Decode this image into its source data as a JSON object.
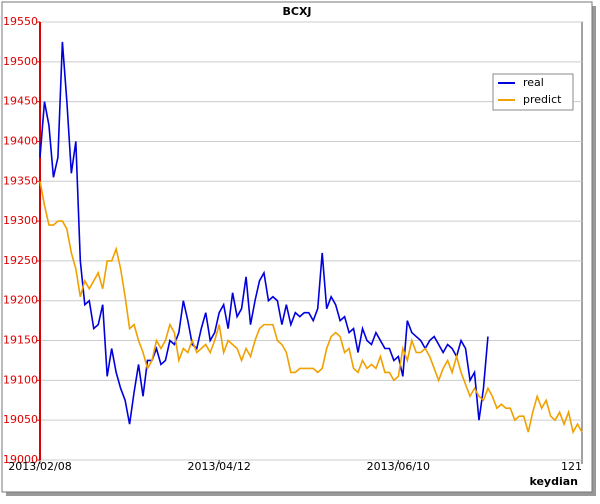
{
  "chart_data": {
    "type": "line",
    "title": "BCXJ",
    "xlabel": "keydian",
    "xlim": [
      0,
      121
    ],
    "xticks": [
      {
        "value": 0,
        "label": "2013/02/08"
      },
      {
        "value": 40,
        "label": "2013/04/12"
      },
      {
        "value": 80,
        "label": "2013/06/10"
      },
      121
    ],
    "ylim": [
      19000,
      19550
    ],
    "yticks": [
      19000,
      19050,
      19100,
      19150,
      19200,
      19250,
      19300,
      19350,
      19400,
      19450,
      19500,
      19550
    ],
    "grid": true,
    "legend": "upper right",
    "series": [
      {
        "name": "real",
        "color": "#0000dd",
        "values": [
          19380,
          19450,
          19420,
          19355,
          19380,
          19525,
          19450,
          19360,
          19400,
          19250,
          19195,
          19200,
          19165,
          19170,
          19195,
          19105,
          19140,
          19110,
          19090,
          19075,
          19045,
          19085,
          19120,
          19080,
          19125,
          19125,
          19140,
          19120,
          19125,
          19150,
          19145,
          19160,
          19200,
          19175,
          19145,
          19140,
          19165,
          19185,
          19150,
          19160,
          19185,
          19195,
          19165,
          19210,
          19180,
          19190,
          19230,
          19170,
          19200,
          19225,
          19235,
          19200,
          19205,
          19200,
          19170,
          19195,
          19170,
          19185,
          19180,
          19185,
          19185,
          19175,
          19190,
          19260,
          19190,
          19205,
          19195,
          19175,
          19180,
          19160,
          19165,
          19135,
          19165,
          19150,
          19145,
          19160,
          19150,
          19140,
          19140,
          19125,
          19130,
          19105,
          19175,
          19160,
          19155,
          19150,
          19140,
          19150,
          19155,
          19145,
          19135,
          19145,
          19140,
          19130,
          19150,
          19140,
          19100,
          19110,
          19050,
          19090,
          19155
        ]
      },
      {
        "name": "predict",
        "color": "#f0a000",
        "values": [
          19350,
          19320,
          19295,
          19295,
          19300,
          19300,
          19290,
          19260,
          19240,
          19205,
          19225,
          19215,
          19225,
          19235,
          19215,
          19250,
          19250,
          19265,
          19240,
          19205,
          19165,
          19170,
          19150,
          19135,
          19115,
          19125,
          19150,
          19140,
          19150,
          19170,
          19160,
          19125,
          19140,
          19135,
          19150,
          19135,
          19140,
          19145,
          19135,
          19150,
          19170,
          19135,
          19150,
          19145,
          19140,
          19125,
          19140,
          19130,
          19150,
          19165,
          19170,
          19170,
          19170,
          19150,
          19145,
          19135,
          19110,
          19110,
          19115,
          19115,
          19115,
          19115,
          19110,
          19115,
          19140,
          19155,
          19160,
          19155,
          19135,
          19140,
          19115,
          19110,
          19125,
          19115,
          19120,
          19115,
          19130,
          19110,
          19110,
          19100,
          19105,
          19140,
          19125,
          19150,
          19135,
          19135,
          19140,
          19130,
          19115,
          19100,
          19115,
          19125,
          19110,
          19130,
          19110,
          19095,
          19080,
          19090,
          19080,
          19075,
          19090,
          19080,
          19065,
          19070,
          19065,
          19065,
          19050,
          19055,
          19055,
          19035,
          19060,
          19080,
          19065,
          19075,
          19055,
          19050,
          19060,
          19045,
          19060,
          19035,
          19045,
          19035
        ]
      }
    ]
  }
}
